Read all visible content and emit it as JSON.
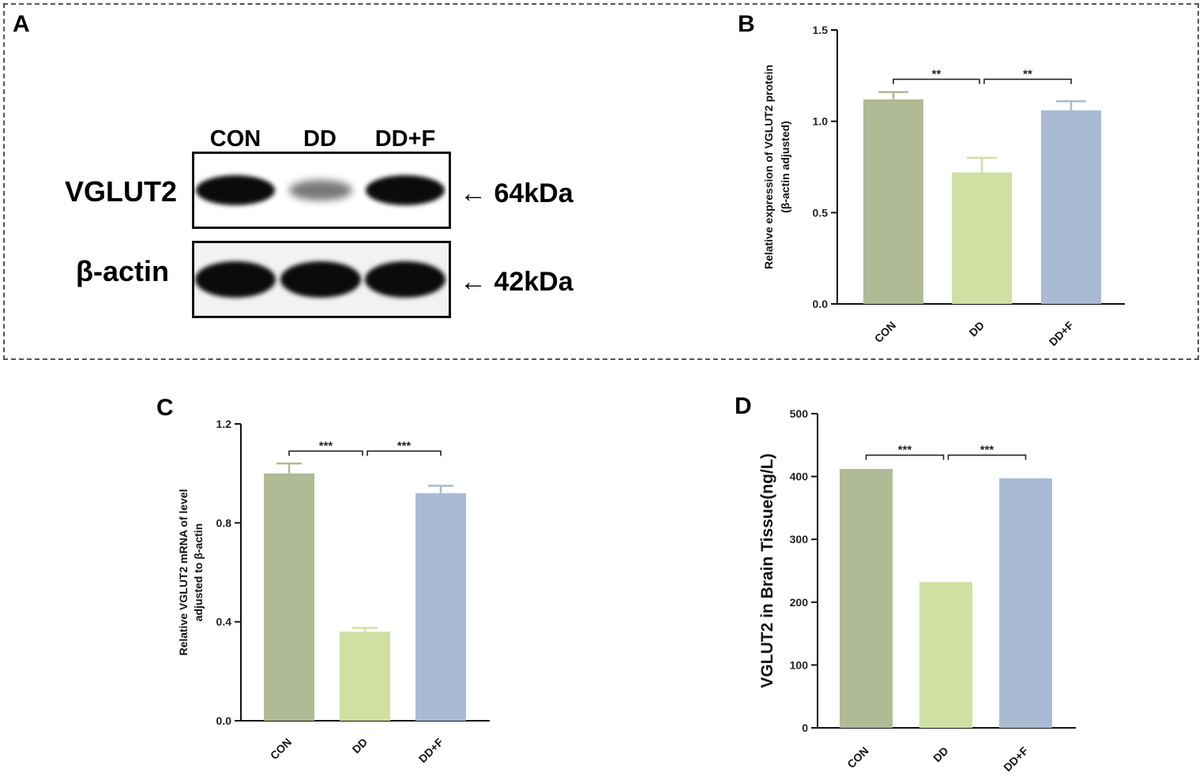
{
  "panels": {
    "A": "A",
    "B": "B",
    "C": "C",
    "D": "D"
  },
  "blot": {
    "lanes": [
      "CON",
      "DD",
      "DD+F"
    ],
    "rows": [
      {
        "label": "VGLUT2",
        "kda": "64kDa",
        "band_intensity": [
          1.0,
          0.45,
          0.95
        ]
      },
      {
        "label": "β-actin",
        "kda": "42kDa",
        "band_intensity": [
          1.0,
          1.0,
          1.0
        ]
      }
    ],
    "arrow": "←"
  },
  "colors": {
    "CON": "#b0ba94",
    "DD": "#cfe0a2",
    "DD+F": "#a9bbd3"
  },
  "chart_data": [
    {
      "id": "B",
      "type": "bar",
      "categories": [
        "CON",
        "DD",
        "DD+F"
      ],
      "values": [
        1.12,
        0.72,
        1.06
      ],
      "errors": [
        0.04,
        0.08,
        0.05
      ],
      "ylabel": [
        "Relative expression of VGLUT2 protein",
        "(β-actin adjusted)"
      ],
      "ylim": [
        0,
        1.5
      ],
      "yticks": [
        "0.0",
        "0.5",
        "1.0",
        "1.5"
      ],
      "ytick_values": [
        0,
        0.5,
        1.0,
        1.5
      ],
      "significance": [
        {
          "from": 0,
          "to": 1,
          "label": "**",
          "y": 1.23
        },
        {
          "from": 1,
          "to": 2,
          "label": "**",
          "y": 1.23
        }
      ]
    },
    {
      "id": "C",
      "type": "bar",
      "categories": [
        "CON",
        "DD",
        "DD+F"
      ],
      "values": [
        1.0,
        0.36,
        0.92
      ],
      "errors": [
        0.04,
        0.015,
        0.03
      ],
      "ylabel": [
        "Relative VGLUT2 mRNA of level",
        "adjusted to β-actin"
      ],
      "ylim": [
        0,
        1.2
      ],
      "yticks": [
        "0.0",
        "0.4",
        "0.8",
        "1.2"
      ],
      "ytick_values": [
        0,
        0.4,
        0.8,
        1.2
      ],
      "significance": [
        {
          "from": 0,
          "to": 1,
          "label": "***",
          "y": 1.09
        },
        {
          "from": 1,
          "to": 2,
          "label": "***",
          "y": 1.09
        }
      ]
    },
    {
      "id": "D",
      "type": "bar",
      "categories": [
        "CON",
        "DD",
        "DD+F"
      ],
      "values": [
        412,
        232,
        397
      ],
      "errors": [
        0,
        0,
        0
      ],
      "ylabel": [
        "VGLUT2 in Brain Tissue(ng/L)"
      ],
      "ylim": [
        0,
        500
      ],
      "yticks": [
        "0",
        "100",
        "200",
        "300",
        "400",
        "500"
      ],
      "ytick_values": [
        0,
        100,
        200,
        300,
        400,
        500
      ],
      "significance": [
        {
          "from": 0,
          "to": 1,
          "label": "***",
          "y": 434
        },
        {
          "from": 1,
          "to": 2,
          "label": "***",
          "y": 434
        }
      ]
    }
  ]
}
